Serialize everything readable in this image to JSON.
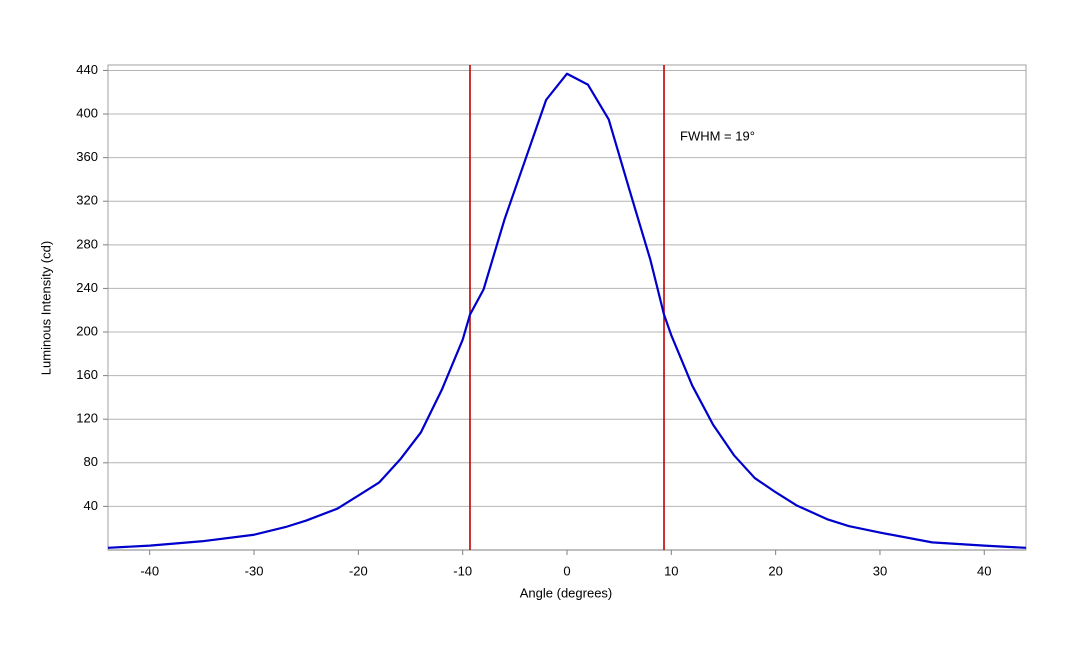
{
  "chart_data": {
    "type": "line",
    "x_label": "Angle (degrees)",
    "y_label": "Luminous Intensity (cd)",
    "annotation": "FWHM = 19°",
    "x": [
      -44,
      -40,
      -35,
      -30,
      -27,
      -25,
      -22,
      -20,
      -18,
      -16,
      -14,
      -12,
      -10,
      -9.3,
      -8,
      -6,
      -4,
      -2,
      0,
      2,
      4,
      6,
      8,
      9.3,
      10,
      12,
      14,
      16,
      18,
      20,
      22,
      25,
      27,
      30,
      35,
      40,
      44
    ],
    "values": [
      2,
      4,
      8,
      14,
      21,
      27,
      38,
      50,
      62,
      83,
      108,
      147,
      193,
      216,
      239,
      303,
      358,
      413,
      437,
      427,
      395,
      330,
      266,
      216,
      197,
      151,
      115,
      87,
      66,
      53,
      41,
      28,
      22,
      16,
      7,
      4,
      2
    ],
    "color": "#0000cc",
    "reference_lines": [
      {
        "x": -9.3,
        "color": "#c00000"
      },
      {
        "x": 9.3,
        "color": "#c00000"
      }
    ],
    "xlim": [
      -44,
      44
    ],
    "ylim": [
      0,
      445
    ],
    "xticks": [
      -40,
      -30,
      -20,
      -10,
      0,
      10,
      20,
      30,
      40
    ],
    "yticks": [
      40,
      80,
      120,
      160,
      200,
      240,
      280,
      320,
      360,
      400,
      440
    ],
    "grid": true
  }
}
